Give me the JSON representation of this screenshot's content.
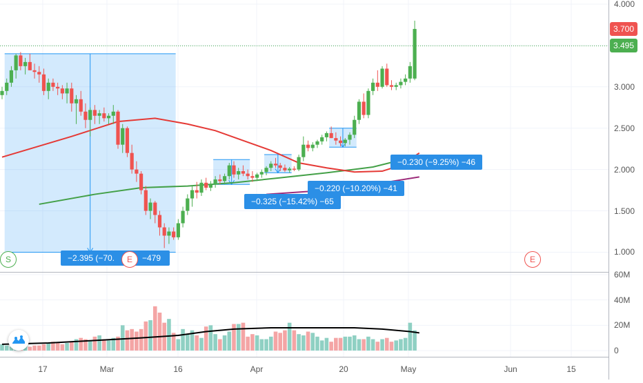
{
  "chart_data": {
    "type": "candlestick",
    "price_axis": {
      "ticks": [
        "4.000",
        "3.500",
        "3.000",
        "2.500",
        "2.000",
        "1.500",
        "1.000"
      ],
      "ylim": [
        0.77,
        4.05
      ],
      "last_price_label": "3.700",
      "last_price_color": "#ef5350",
      "line_label": "3.495",
      "line_color": "#4caf50",
      "line_value": 3.495
    },
    "volume_axis": {
      "ticks": [
        "60M",
        "40M",
        "20M",
        "0"
      ],
      "ylim": [
        0,
        60
      ]
    },
    "x_axis": {
      "ticks": [
        "17",
        "Mar",
        "16",
        "Apr",
        "20",
        "May",
        "Jun",
        "15"
      ]
    },
    "colors": {
      "up": "#4caf50",
      "down": "#ef5350",
      "vol_up": "#8fd0c3",
      "vol_down": "#f4a5a5"
    },
    "candles": [
      [
        2.9,
        3.0,
        2.85,
        2.95
      ],
      [
        2.95,
        3.1,
        2.9,
        3.05
      ],
      [
        3.05,
        3.25,
        3.0,
        3.2
      ],
      [
        3.2,
        3.4,
        3.1,
        3.38
      ],
      [
        3.38,
        3.42,
        3.2,
        3.25
      ],
      [
        3.25,
        3.35,
        3.15,
        3.3
      ],
      [
        3.3,
        3.4,
        3.2,
        3.2
      ],
      [
        3.2,
        3.28,
        3.1,
        3.18
      ],
      [
        3.18,
        3.25,
        3.05,
        3.15
      ],
      [
        3.15,
        3.22,
        2.9,
        2.95
      ],
      [
        2.95,
        3.1,
        2.85,
        3.05
      ],
      [
        3.05,
        3.1,
        2.95,
        3.0
      ],
      [
        3.0,
        3.05,
        2.9,
        2.98
      ],
      [
        2.98,
        3.02,
        2.85,
        2.92
      ],
      [
        2.92,
        3.05,
        2.8,
        2.98
      ],
      [
        2.98,
        3.05,
        2.7,
        2.8
      ],
      [
        2.8,
        2.9,
        2.55,
        2.85
      ],
      [
        2.85,
        2.95,
        2.65,
        2.7
      ],
      [
        2.7,
        2.8,
        2.5,
        2.6
      ],
      [
        2.6,
        2.75,
        2.4,
        2.72
      ],
      [
        2.72,
        2.78,
        2.55,
        2.65
      ],
      [
        2.65,
        2.72,
        2.55,
        2.68
      ],
      [
        2.68,
        2.75,
        2.58,
        2.62
      ],
      [
        2.62,
        2.68,
        2.55,
        2.65
      ],
      [
        2.65,
        2.78,
        2.55,
        2.7
      ],
      [
        2.7,
        2.72,
        2.25,
        2.3
      ],
      [
        2.3,
        2.55,
        2.2,
        2.5
      ],
      [
        2.5,
        2.52,
        2.15,
        2.2
      ],
      [
        2.2,
        2.3,
        1.95,
        2.0
      ],
      [
        2.0,
        2.1,
        1.85,
        1.95
      ],
      [
        1.95,
        1.98,
        1.7,
        1.75
      ],
      [
        1.75,
        1.8,
        1.45,
        1.5
      ],
      [
        1.5,
        1.65,
        1.4,
        1.6
      ],
      [
        1.6,
        1.62,
        1.35,
        1.45
      ],
      [
        1.45,
        1.5,
        1.2,
        1.3
      ],
      [
        1.3,
        1.35,
        1.05,
        1.2
      ],
      [
        1.2,
        1.3,
        1.1,
        1.25
      ],
      [
        1.25,
        1.3,
        1.15,
        1.18
      ],
      [
        1.18,
        1.4,
        1.15,
        1.35
      ],
      [
        1.35,
        1.55,
        1.3,
        1.5
      ],
      [
        1.5,
        1.7,
        1.45,
        1.65
      ],
      [
        1.65,
        1.8,
        1.55,
        1.75
      ],
      [
        1.75,
        1.85,
        1.65,
        1.72
      ],
      [
        1.72,
        1.88,
        1.68,
        1.84
      ],
      [
        1.84,
        1.9,
        1.75,
        1.78
      ],
      [
        1.78,
        1.86,
        1.74,
        1.82
      ],
      [
        1.82,
        1.92,
        1.78,
        1.88
      ],
      [
        1.88,
        1.94,
        1.82,
        1.86
      ],
      [
        1.86,
        1.95,
        1.82,
        1.92
      ],
      [
        1.92,
        2.08,
        1.88,
        2.05
      ],
      [
        2.05,
        2.1,
        1.9,
        1.94
      ],
      [
        1.94,
        2.02,
        1.88,
        1.98
      ],
      [
        1.98,
        2.05,
        1.92,
        1.95
      ],
      [
        1.95,
        2.0,
        1.88,
        1.92
      ],
      [
        1.92,
        1.98,
        1.85,
        1.9
      ],
      [
        1.9,
        1.96,
        1.86,
        1.94
      ],
      [
        1.94,
        2.0,
        1.9,
        1.97
      ],
      [
        1.97,
        2.04,
        1.93,
        2.02
      ],
      [
        2.02,
        2.1,
        1.98,
        2.07
      ],
      [
        2.07,
        2.14,
        2.02,
        2.05
      ],
      [
        2.05,
        2.08,
        1.98,
        2.02
      ],
      [
        2.02,
        2.06,
        1.97,
        1.99
      ],
      [
        1.99,
        2.03,
        1.96,
        2.01
      ],
      [
        2.01,
        2.04,
        1.98,
        2.0
      ],
      [
        2.0,
        2.18,
        1.98,
        2.15
      ],
      [
        2.15,
        2.4,
        2.1,
        2.3
      ],
      [
        2.3,
        2.35,
        2.22,
        2.26
      ],
      [
        2.26,
        2.33,
        2.22,
        2.3
      ],
      [
        2.3,
        2.36,
        2.26,
        2.34
      ],
      [
        2.34,
        2.42,
        2.3,
        2.39
      ],
      [
        2.39,
        2.46,
        2.34,
        2.44
      ],
      [
        2.44,
        2.52,
        2.38,
        2.38
      ],
      [
        2.38,
        2.45,
        2.3,
        2.35
      ],
      [
        2.35,
        2.4,
        2.28,
        2.32
      ],
      [
        2.32,
        2.38,
        2.28,
        2.36
      ],
      [
        2.36,
        2.45,
        2.3,
        2.42
      ],
      [
        2.42,
        2.65,
        2.38,
        2.6
      ],
      [
        2.6,
        2.85,
        2.55,
        2.82
      ],
      [
        2.82,
        2.92,
        2.62,
        2.66
      ],
      [
        2.66,
        2.98,
        2.62,
        2.95
      ],
      [
        2.95,
        3.1,
        2.9,
        3.05
      ],
      [
        3.05,
        3.2,
        2.95,
        3.0
      ],
      [
        3.0,
        3.25,
        2.98,
        3.22
      ],
      [
        3.22,
        3.28,
        3.0,
        3.02
      ],
      [
        3.02,
        3.08,
        2.96,
        3.0
      ],
      [
        3.0,
        3.05,
        2.96,
        3.02
      ],
      [
        3.02,
        3.1,
        2.98,
        3.06
      ],
      [
        3.06,
        3.15,
        3.02,
        3.1
      ],
      [
        3.1,
        3.3,
        3.05,
        3.25
      ],
      [
        3.1,
        3.8,
        3.08,
        3.7
      ]
    ],
    "volume": [
      5,
      4,
      3,
      4,
      3,
      4,
      3,
      4,
      4,
      5,
      6,
      7,
      6,
      5,
      6,
      7,
      9,
      10,
      9,
      8,
      11,
      12,
      9,
      8,
      10,
      11,
      20,
      16,
      17,
      15,
      17,
      23,
      24,
      35,
      30,
      22,
      25,
      14,
      9,
      17,
      13,
      16,
      12,
      10,
      19,
      20,
      13,
      9,
      12,
      15,
      21,
      21,
      22,
      11,
      13,
      12,
      9,
      9,
      11,
      15,
      14,
      16,
      22,
      16,
      13,
      12,
      15,
      14,
      11,
      8,
      10,
      7,
      10,
      10,
      11,
      11,
      12,
      9,
      9,
      11,
      9,
      7,
      9,
      10,
      7,
      8,
      9,
      10,
      22,
      16
    ],
    "ma_red": [
      [
        0,
        2.15
      ],
      [
        15,
        2.4
      ],
      [
        25,
        2.58
      ],
      [
        33,
        2.62
      ],
      [
        40,
        2.55
      ],
      [
        46,
        2.47
      ],
      [
        52,
        2.35
      ],
      [
        58,
        2.23
      ],
      [
        64,
        2.08
      ],
      [
        70,
        2.02
      ],
      [
        76,
        1.97
      ],
      [
        82,
        1.98
      ],
      [
        86,
        2.05
      ],
      [
        90,
        2.2
      ]
    ],
    "ma_green": [
      [
        8,
        1.58
      ],
      [
        20,
        1.7
      ],
      [
        30,
        1.78
      ],
      [
        40,
        1.8
      ],
      [
        50,
        1.84
      ],
      [
        60,
        1.9
      ],
      [
        70,
        1.96
      ],
      [
        80,
        2.03
      ],
      [
        90,
        2.17
      ]
    ],
    "ma_purple": [
      [
        57,
        1.7
      ],
      [
        70,
        1.75
      ],
      [
        80,
        1.82
      ],
      [
        90,
        1.91
      ]
    ],
    "vol_ma": [
      [
        0,
        5
      ],
      [
        10,
        6
      ],
      [
        20,
        8
      ],
      [
        30,
        10
      ],
      [
        38,
        12
      ],
      [
        44,
        15
      ],
      [
        50,
        17
      ],
      [
        58,
        18
      ],
      [
        64,
        18
      ],
      [
        70,
        18
      ],
      [
        76,
        18
      ],
      [
        82,
        17
      ],
      [
        88,
        15
      ],
      [
        90,
        14
      ]
    ],
    "measurements": [
      {
        "label": "−2.395 (−70.",
        "from_bar": 1,
        "to_bar": 37,
        "top": 3.4,
        "bottom": 1.0
      },
      {
        "label": "−0.325 (−15.42%) −65",
        "from_bar": 46,
        "to_bar": 53,
        "top": 2.12,
        "bottom": 1.82
      },
      {
        "label": "−0.220 (−10.20%) −41",
        "from_bar": 57,
        "to_bar": 62,
        "top": 2.18,
        "bottom": 1.96
      },
      {
        "label": "−0.230 (−9.25%) −46",
        "from_bar": 71,
        "to_bar": 76,
        "top": 2.5,
        "bottom": 2.27
      }
    ],
    "measure_label_tail": "−479",
    "markers": [
      {
        "text": "S",
        "type": "split"
      },
      {
        "text": "E",
        "type": "earnings"
      },
      {
        "text": "E",
        "type": "earnings"
      }
    ]
  }
}
